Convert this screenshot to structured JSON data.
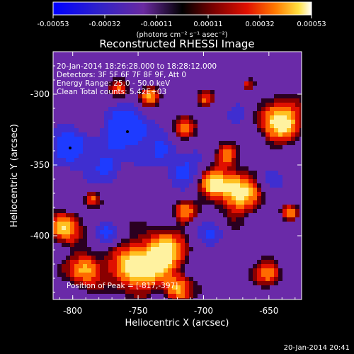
{
  "colorbar": {
    "ticks": [
      "-0.00053",
      "-0.00032",
      "-0.00011",
      "0.00011",
      "0.00032",
      "0.00053"
    ],
    "unit_label": "(photons cm⁻² s⁻¹ asec⁻²)",
    "range": [
      -0.00053,
      0.00053
    ]
  },
  "chart_data": {
    "type": "heatmap",
    "title": "Reconstructed RHESSI Image",
    "xlabel": "Heliocentric X (arcsec)",
    "ylabel": "Heliocentric Y (arcsec)",
    "xlim": [
      -815,
      -625
    ],
    "ylim": [
      -445,
      -270
    ],
    "xticks": [
      "-800",
      "-750",
      "-700",
      "-650"
    ],
    "yticks": [
      "-300",
      "-350",
      "-400"
    ],
    "xtick_values": [
      -800,
      -750,
      -700,
      -650
    ],
    "ytick_values": [
      -300,
      -350,
      -400
    ],
    "annotations": [
      "20-Jan-2014 18:26:28.000 to 18:28:12.000",
      "Detectors: 3F 5F 6F 7F 8F 9F, Att 0",
      "Energy Range: 25.0 - 50.0 keV",
      "Clean     Total counts: 5.42E+03"
    ],
    "peak_label": "Position of Peak = [-817,-397]",
    "peak": [
      -817,
      -397
    ]
  },
  "footer_timestamp": "20-Jan-2014 20:41"
}
